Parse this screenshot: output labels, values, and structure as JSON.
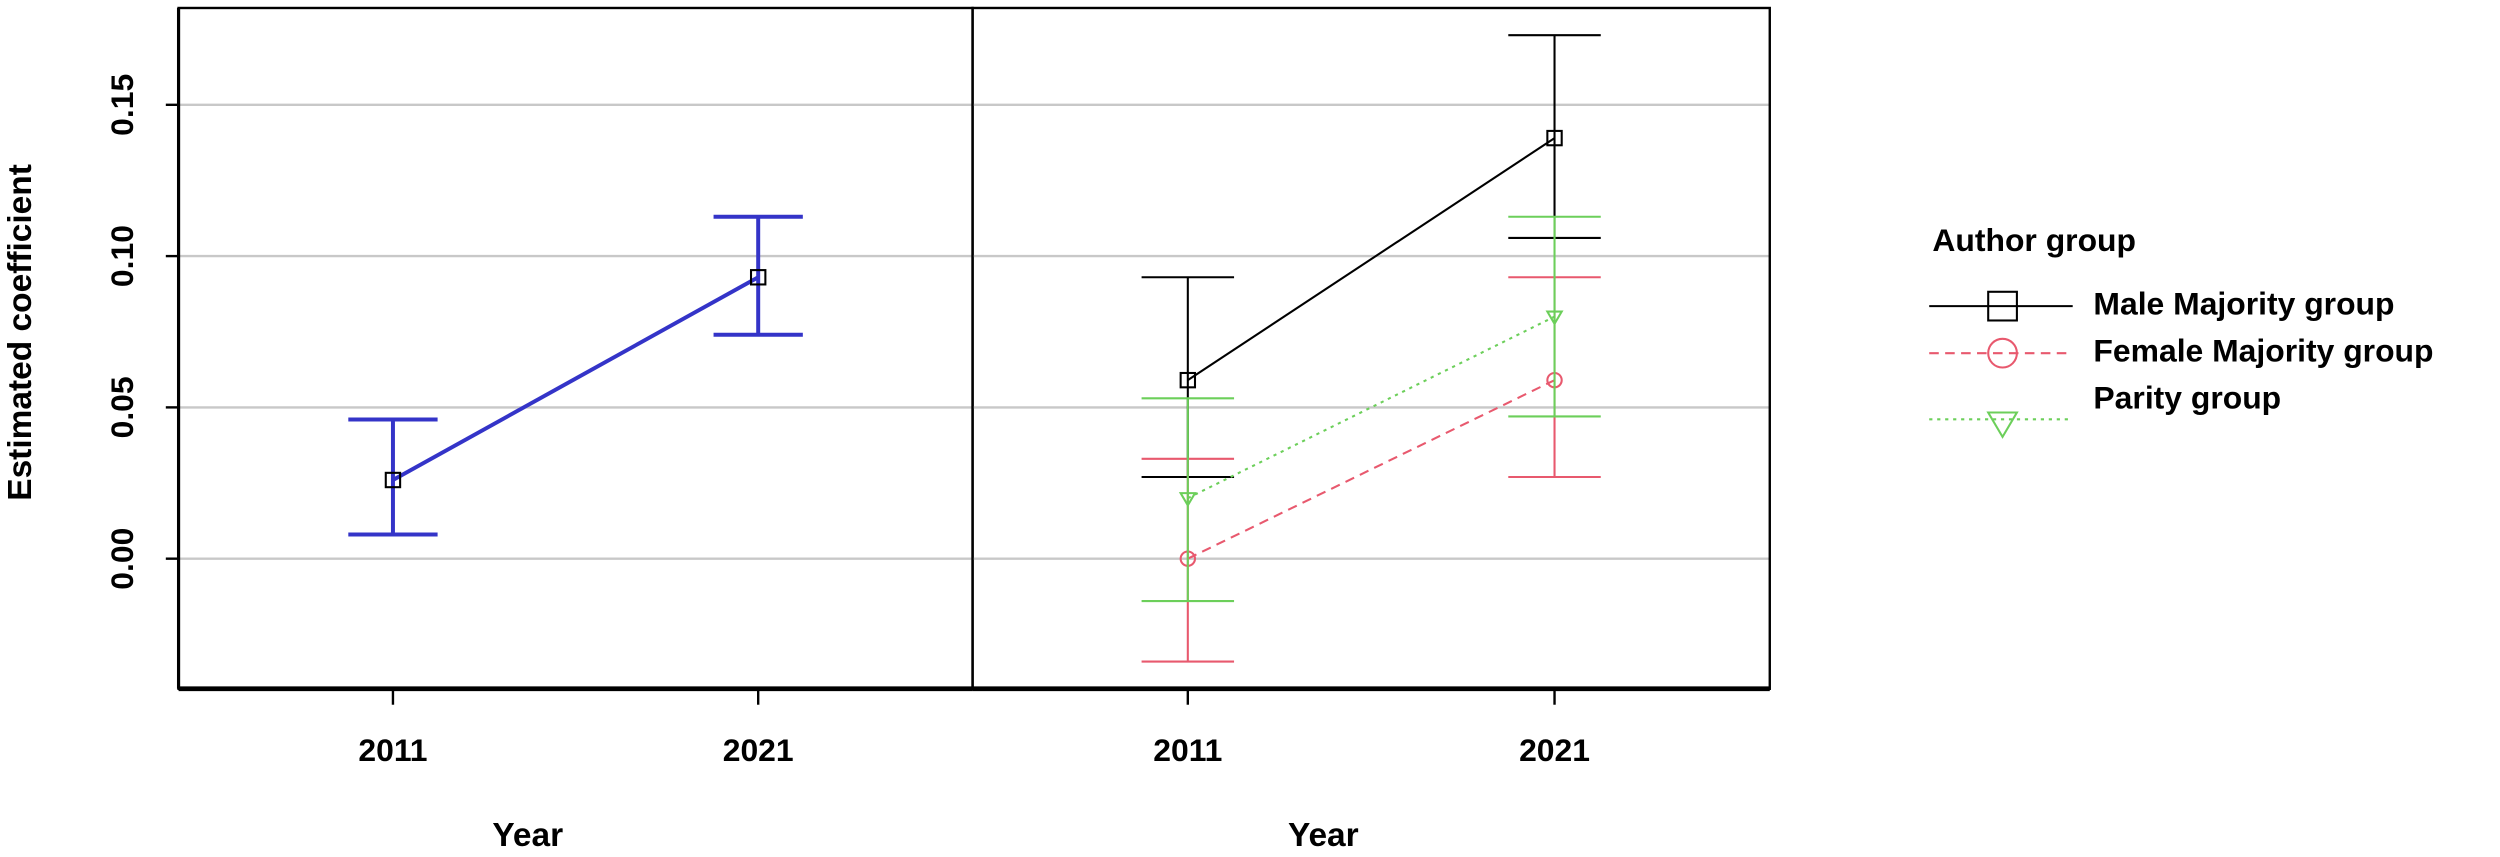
{
  "chart_data": [
    {
      "type": "line",
      "xlabel": "Year",
      "ylabel": "Estimated coefficient",
      "categories": [
        "2011",
        "2021"
      ],
      "ylim": [
        -0.043,
        0.182
      ],
      "yticks": [
        {
          "value": 0,
          "label": "0.00"
        },
        {
          "value": 0.05,
          "label": "0.05"
        },
        {
          "value": 0.1,
          "label": "0.10"
        },
        {
          "value": 0.15,
          "label": "0.15"
        }
      ],
      "grid": true,
      "series": [
        {
          "color": "#3434c8",
          "linestyle": "solid",
          "marker": "square",
          "values": [
            0.026,
            0.093
          ],
          "lower": [
            0.008,
            0.074
          ],
          "upper": [
            0.046,
            0.113
          ]
        }
      ]
    },
    {
      "type": "line",
      "xlabel": "Year",
      "legend_title": "Author group",
      "categories": [
        "2011",
        "2021"
      ],
      "ylim": [
        -0.043,
        0.182
      ],
      "yticks": [
        0,
        0.05,
        0.1,
        0.15
      ],
      "grid": true,
      "series": [
        {
          "name": "Male  Majority group",
          "color": "#000000",
          "linestyle": "solid",
          "marker": "square",
          "values": [
            0.059,
            0.139
          ],
          "lower": [
            0.027,
            0.106
          ],
          "upper": [
            0.093,
            0.173
          ]
        },
        {
          "name": "Female Majority group",
          "color": "#e8596e",
          "linestyle": "dashed",
          "marker": "circle",
          "values": [
            0.0,
            0.059
          ],
          "lower": [
            -0.034,
            0.027
          ],
          "upper": [
            0.033,
            0.093
          ]
        },
        {
          "name": "Parity group",
          "color": "#6ccf5a",
          "linestyle": "dotted",
          "marker": "triangle",
          "values": [
            0.02,
            0.08
          ],
          "lower": [
            -0.014,
            0.047
          ],
          "upper": [
            0.053,
            0.113
          ]
        }
      ]
    }
  ]
}
